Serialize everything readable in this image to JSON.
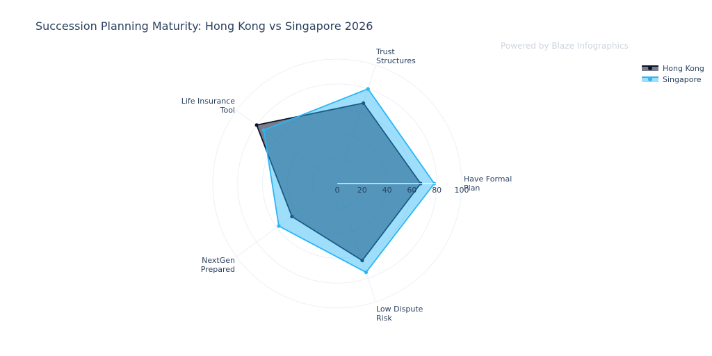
{
  "chart_data": {
    "type": "radar",
    "title": "Succession Planning Maturity: Hong Kong vs Singapore 2026",
    "watermark": "Powered by Blaze Infographics",
    "axes": [
      "Have Formal Plan",
      "Trust Structures",
      "Life Insurance Tool",
      "NextGen Prepared",
      "Low Dispute Risk"
    ],
    "axis_label_lines": [
      [
        "Have Formal",
        "Plan"
      ],
      [
        "Trust",
        "Structures"
      ],
      [
        "Life Insurance",
        "Tool"
      ],
      [
        "NextGen",
        "Prepared"
      ],
      [
        "Low Dispute",
        "Risk"
      ]
    ],
    "radial_range": [
      0,
      100
    ],
    "radial_ticks": [
      0,
      20,
      40,
      60,
      80,
      100
    ],
    "grid": true,
    "legend_position": "top-right",
    "series": [
      {
        "name": "Hong Kong",
        "values": [
          67,
          68,
          80,
          45,
          65
        ],
        "color": "#0b132b"
      },
      {
        "name": "Singapore",
        "values": [
          78,
          80,
          73,
          58,
          75
        ],
        "color": "#29b6f6"
      }
    ]
  }
}
